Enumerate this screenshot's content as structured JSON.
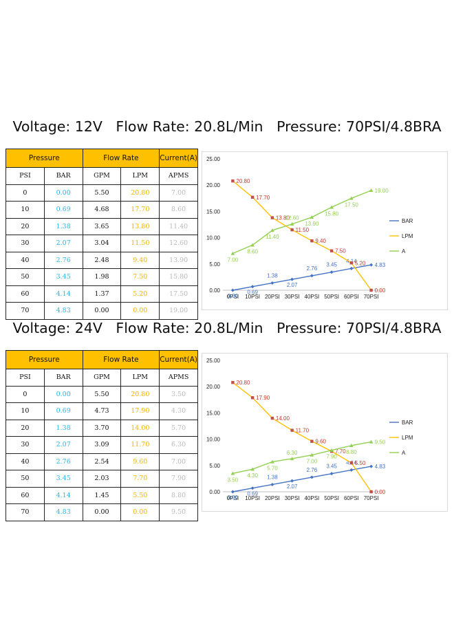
{
  "colors": {
    "header_bg": "#ffc000",
    "bar_series": "#4472c4",
    "lpm_series": "#ffc000",
    "a_series": "#92d050",
    "bar_text": "#2bb5e8",
    "lpm_text": "#f0b400",
    "a_text": "#b9b9b9"
  },
  "sections": [
    {
      "heading": "Voltage: 12V   Flow Rate: 20.8L/Min   Pressure: 70PSI/4.8BRA",
      "table": {
        "group_headers": [
          "Pressure",
          "Flow Rate",
          "Current(A)"
        ],
        "column_headers": [
          "PSI",
          "BAR",
          "GPM",
          "LPM",
          "APMS"
        ],
        "rows": [
          [
            "0",
            "0.00",
            "5.50",
            "20.80",
            "7.00"
          ],
          [
            "10",
            "0.69",
            "4.68",
            "17.70",
            "8.60"
          ],
          [
            "20",
            "1.38",
            "3.65",
            "13.80",
            "11.40"
          ],
          [
            "30",
            "2.07",
            "3.04",
            "11.50",
            "12.60"
          ],
          [
            "40",
            "2.76",
            "2.48",
            "9.40",
            "13.90"
          ],
          [
            "50",
            "3.45",
            "1.98",
            "7.50",
            "15.80"
          ],
          [
            "60",
            "4.14",
            "1.37",
            "5.20",
            "17.50"
          ],
          [
            "70",
            "4.83",
            "0.00",
            "0.00",
            "19.00"
          ]
        ]
      }
    },
    {
      "heading": "Voltage: 24V   Flow Rate: 20.8L/Min   Pressure: 70PSI/4.8BRA",
      "table": {
        "group_headers": [
          "Pressure",
          "Flow Rate",
          "Current(A)"
        ],
        "column_headers": [
          "PSI",
          "BAR",
          "GPM",
          "LPM",
          "APMS"
        ],
        "rows": [
          [
            "0",
            "0.00",
            "5.50",
            "20.80",
            "3.50"
          ],
          [
            "10",
            "0.69",
            "4.73",
            "17.90",
            "4.30"
          ],
          [
            "20",
            "1.38",
            "3.70",
            "14.00",
            "5.70"
          ],
          [
            "30",
            "2.07",
            "3.09",
            "11.70",
            "6.30"
          ],
          [
            "40",
            "2.76",
            "2.54",
            "9.60",
            "7.00"
          ],
          [
            "50",
            "3.45",
            "2.03",
            "7.70",
            "7.90"
          ],
          [
            "60",
            "4.14",
            "1.45",
            "5.50",
            "8.80"
          ],
          [
            "70",
            "4.83",
            "0.00",
            "0.00",
            "9.50"
          ]
        ]
      }
    }
  ],
  "chart_data": [
    {
      "type": "line",
      "categories": [
        "0PSI",
        "10PSI",
        "20PSI",
        "30PSI",
        "40PSI",
        "50PSI",
        "60PSI",
        "70PSI"
      ],
      "yticks": [
        "0.00",
        "5.00",
        "10.00",
        "15.00",
        "20.00",
        "25.00"
      ],
      "ylim": [
        0,
        25
      ],
      "legend_position": "right",
      "series": [
        {
          "name": "BAR",
          "values": [
            0.0,
            0.69,
            1.38,
            2.07,
            2.76,
            3.45,
            4.14,
            4.83
          ],
          "labels": [
            "0.00",
            "0.69",
            "1.38",
            "2.07",
            "2.76",
            "3.45",
            "4.14",
            "4.83"
          ]
        },
        {
          "name": "LPM",
          "values": [
            20.8,
            17.7,
            13.8,
            11.5,
            9.4,
            7.5,
            5.2,
            0.0
          ],
          "labels": [
            "20.80",
            "17.70",
            "13.80",
            "11.50",
            "9.40",
            "7.50",
            "5.20",
            "0.00"
          ]
        },
        {
          "name": "A",
          "values": [
            7.0,
            8.6,
            11.4,
            12.6,
            13.9,
            15.8,
            17.5,
            19.0
          ],
          "labels": [
            "7.00",
            "8.60",
            "11.40",
            "12.60",
            "13.90",
            "15.80",
            "17.50",
            "19.00"
          ]
        }
      ]
    },
    {
      "type": "line",
      "categories": [
        "0PSI",
        "10PSI",
        "20PSI",
        "30PSI",
        "40PSI",
        "50PSI",
        "60PSI",
        "70PSI"
      ],
      "yticks": [
        "0.00",
        "5.00",
        "10.00",
        "15.00",
        "20.00",
        "25.00"
      ],
      "ylim": [
        0,
        25
      ],
      "legend_position": "right",
      "series": [
        {
          "name": "BAR",
          "values": [
            0.0,
            0.69,
            1.38,
            2.07,
            2.76,
            3.45,
            4.14,
            4.83
          ],
          "labels": [
            "0.00",
            "0.69",
            "1.38",
            "2.07",
            "2.76",
            "3.45",
            "4.14",
            "4.83"
          ]
        },
        {
          "name": "LPM",
          "values": [
            20.8,
            17.9,
            14.0,
            11.7,
            9.6,
            7.7,
            5.5,
            0.0
          ],
          "labels": [
            "20.80",
            "17.90",
            "14.00",
            "11.70",
            "9.60",
            "7.70",
            "5.50",
            "0.00"
          ]
        },
        {
          "name": "A",
          "values": [
            3.5,
            4.3,
            5.7,
            6.3,
            7.0,
            7.9,
            8.8,
            9.5
          ],
          "labels": [
            "3.50",
            "4.30",
            "5.70",
            "6.30",
            "7.00",
            "7.90",
            "8.80",
            "9.50"
          ]
        }
      ]
    }
  ]
}
